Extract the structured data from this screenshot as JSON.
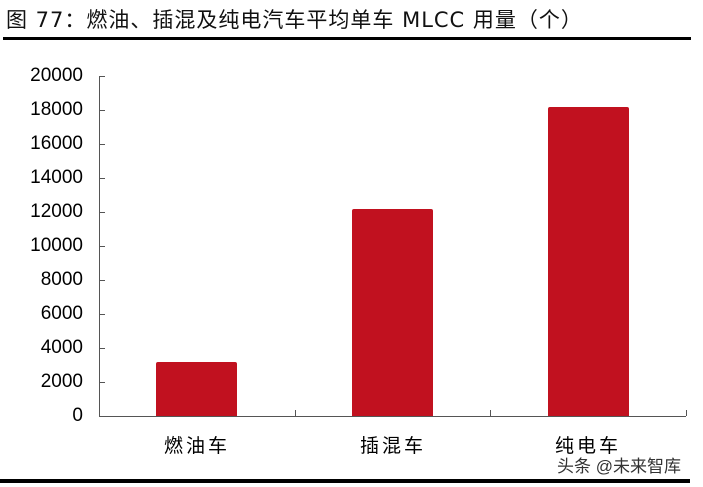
{
  "title": "图 77：燃油、插混及纯电汽车平均单车 MLCC 用量（个）",
  "watermark": "头条 @未来智库",
  "colors": {
    "bar": "#c1111f",
    "axis": "#555555",
    "text": "#000000"
  },
  "chart_data": {
    "type": "bar",
    "title": "图 77：燃油、插混及纯电汽车平均单车 MLCC 用量（个）",
    "categories": [
      "燃油车",
      "插混车",
      "纯电车"
    ],
    "values": [
      3000,
      12000,
      18000
    ],
    "xlabel": "",
    "ylabel": "",
    "ylim": [
      0,
      20000
    ],
    "yticks": [
      "0",
      "2000",
      "4000",
      "6000",
      "8000",
      "10000",
      "12000",
      "14000",
      "16000",
      "18000",
      "20000"
    ],
    "grid": false,
    "legend": null
  }
}
